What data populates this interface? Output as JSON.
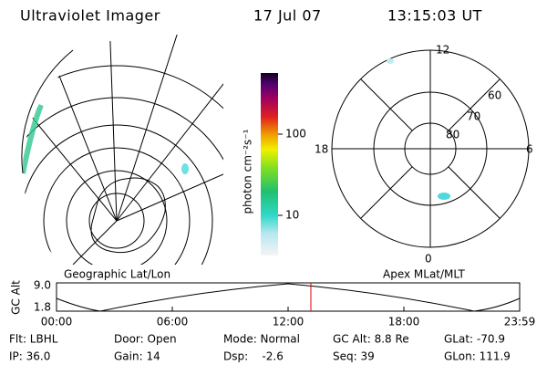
{
  "header": {
    "title": "Ultraviolet Imager",
    "date": "17 Jul 07",
    "time": "13:15:03 UT"
  },
  "colorbar": {
    "label": "photon cm⁻²s⁻¹",
    "ticks": [
      "100",
      "10"
    ]
  },
  "right_panel": {
    "mlt_labels": [
      "12",
      "18",
      "6",
      "0"
    ],
    "lat_labels": [
      "60",
      "70",
      "80"
    ]
  },
  "timeline": {
    "left_label": "Geographic Lat/Lon",
    "right_label": "Apex MLat/MLT",
    "y_label": "GC Alt",
    "y_ticks": [
      "9.0",
      "1.8"
    ],
    "x_ticks": [
      "00:00",
      "06:00",
      "12:00",
      "18:00",
      "23:59"
    ]
  },
  "info": [
    [
      "Flt: LBHL",
      "Door: Open",
      "Mode: Normal",
      "GC Alt: 8.8 Re",
      "GLat: -70.9"
    ],
    [
      "IP: 36.0",
      "Gain: 14",
      "Dsp:    -2.6",
      "Seq: 39",
      "GLon: 111.9"
    ]
  ]
}
